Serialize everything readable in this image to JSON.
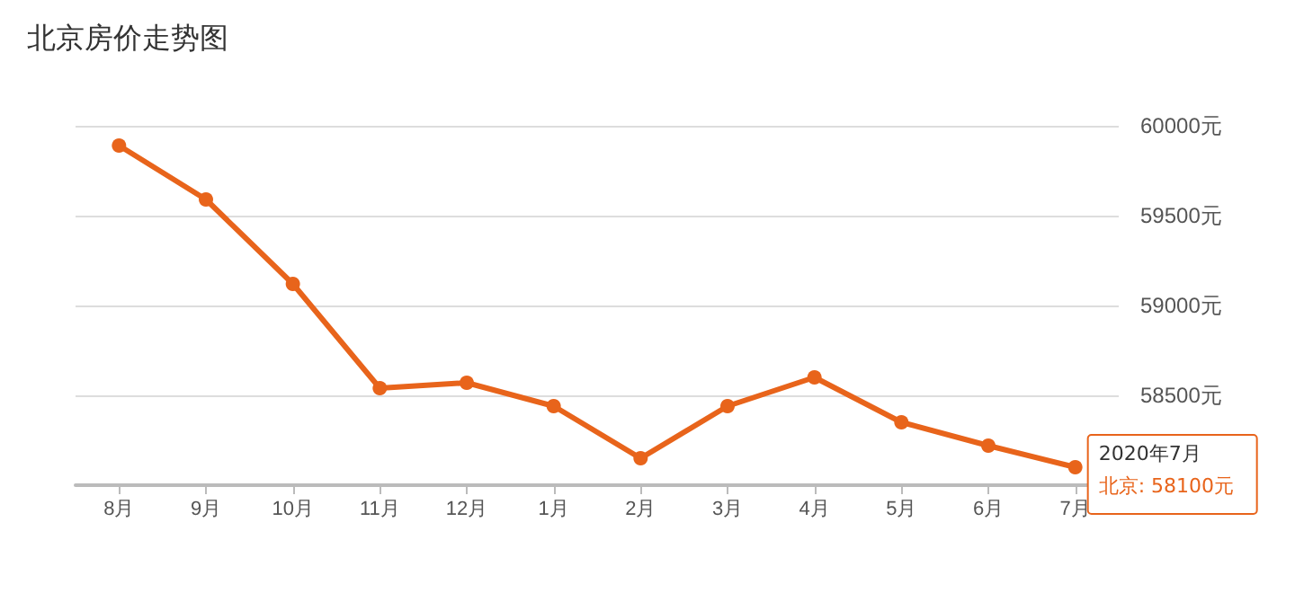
{
  "chart_data": {
    "type": "line",
    "title": "北京房价走势图",
    "categories": [
      "8月",
      "9月",
      "10月",
      "11月",
      "12月",
      "1月",
      "2月",
      "3月",
      "4月",
      "5月",
      "6月",
      "7月"
    ],
    "series": [
      {
        "color": "#e8641b",
        "values": [
          59890,
          59590,
          59120,
          58540,
          58570,
          58440,
          58150,
          58440,
          58600,
          58350,
          58220,
          58100
        ]
      }
    ],
    "ylim": [
      58000,
      60000
    ],
    "yticks": [
      {
        "value": 58500,
        "label": "58500元"
      },
      {
        "value": 59000,
        "label": "59000元"
      },
      {
        "value": 59500,
        "label": "59500元"
      },
      {
        "value": 60000,
        "label": "60000元"
      }
    ],
    "grid": "y",
    "marker": "circle",
    "line_style": "solid",
    "annotations": [
      {
        "text": "2020年7月",
        "x": "7月",
        "y": 58100
      },
      {
        "text": "北京: 58100元",
        "x": "7月",
        "y": 58100
      }
    ]
  }
}
